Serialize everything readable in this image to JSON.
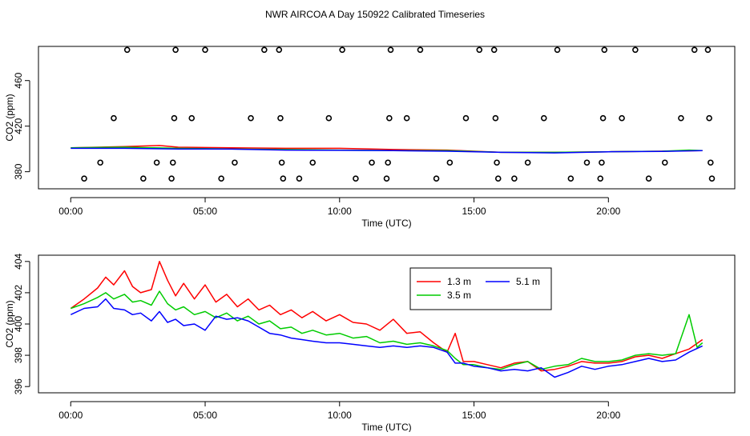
{
  "title": "NWR AIRCOA A  Day 150922  Calibrated Timeseries",
  "chart_data": [
    {
      "type": "scatter",
      "xlabel": "Time (UTC)",
      "ylabel": "CO2 (ppm)",
      "xlim": [
        -1.2,
        24.7
      ],
      "ylim": [
        365,
        490
      ],
      "x_ticks": [
        0,
        5,
        10,
        15,
        20
      ],
      "x_tick_labels": [
        "00:00",
        "05:00",
        "10:00",
        "15:00",
        "20:00"
      ],
      "y_ticks": [
        380,
        420,
        460
      ],
      "y_tick_labels": [
        "380",
        "420",
        "460"
      ],
      "grid": false,
      "legend": "none",
      "marker_points": [
        {
          "x": 0.5,
          "y": 374
        },
        {
          "x": 1.1,
          "y": 388
        },
        {
          "x": 1.6,
          "y": 427
        },
        {
          "x": 2.1,
          "y": 487
        },
        {
          "x": 2.7,
          "y": 374
        },
        {
          "x": 3.2,
          "y": 388
        },
        {
          "x": 3.75,
          "y": 374
        },
        {
          "x": 3.8,
          "y": 388
        },
        {
          "x": 3.85,
          "y": 427
        },
        {
          "x": 3.9,
          "y": 487
        },
        {
          "x": 4.5,
          "y": 427
        },
        {
          "x": 5.0,
          "y": 487
        },
        {
          "x": 5.6,
          "y": 374
        },
        {
          "x": 6.1,
          "y": 388
        },
        {
          "x": 6.7,
          "y": 427
        },
        {
          "x": 7.2,
          "y": 487
        },
        {
          "x": 7.75,
          "y": 487
        },
        {
          "x": 7.8,
          "y": 427
        },
        {
          "x": 7.85,
          "y": 388
        },
        {
          "x": 7.9,
          "y": 374
        },
        {
          "x": 8.5,
          "y": 374
        },
        {
          "x": 9.0,
          "y": 388
        },
        {
          "x": 9.6,
          "y": 427
        },
        {
          "x": 10.1,
          "y": 487
        },
        {
          "x": 10.6,
          "y": 374
        },
        {
          "x": 11.2,
          "y": 388
        },
        {
          "x": 11.75,
          "y": 374
        },
        {
          "x": 11.8,
          "y": 388
        },
        {
          "x": 11.85,
          "y": 427
        },
        {
          "x": 11.9,
          "y": 487
        },
        {
          "x": 12.5,
          "y": 427
        },
        {
          "x": 13.0,
          "y": 487
        },
        {
          "x": 13.6,
          "y": 374
        },
        {
          "x": 14.1,
          "y": 388
        },
        {
          "x": 14.7,
          "y": 427
        },
        {
          "x": 15.2,
          "y": 487
        },
        {
          "x": 15.75,
          "y": 487
        },
        {
          "x": 15.8,
          "y": 427
        },
        {
          "x": 15.85,
          "y": 388
        },
        {
          "x": 15.9,
          "y": 374
        },
        {
          "x": 16.5,
          "y": 374
        },
        {
          "x": 17.0,
          "y": 388
        },
        {
          "x": 17.6,
          "y": 427
        },
        {
          "x": 18.1,
          "y": 487
        },
        {
          "x": 18.6,
          "y": 374
        },
        {
          "x": 19.2,
          "y": 388
        },
        {
          "x": 19.7,
          "y": 374
        },
        {
          "x": 19.75,
          "y": 388
        },
        {
          "x": 19.8,
          "y": 427
        },
        {
          "x": 19.85,
          "y": 487
        },
        {
          "x": 20.5,
          "y": 427
        },
        {
          "x": 21.0,
          "y": 487
        },
        {
          "x": 21.5,
          "y": 374
        },
        {
          "x": 22.1,
          "y": 388
        },
        {
          "x": 22.7,
          "y": 427
        },
        {
          "x": 23.2,
          "y": 487
        },
        {
          "x": 23.7,
          "y": 487
        },
        {
          "x": 23.75,
          "y": 427
        },
        {
          "x": 23.8,
          "y": 388
        },
        {
          "x": 23.85,
          "y": 374
        }
      ],
      "series": [
        {
          "name": "1.3 m",
          "color": "#ff0000",
          "x": [
            0,
            2,
            3.3,
            4,
            6,
            8,
            10,
            12,
            14,
            16,
            18,
            20,
            22,
            23.5
          ],
          "values": [
            401,
            402,
            403,
            401.5,
            401,
            400.5,
            400.5,
            399.5,
            399,
            397,
            397,
            397.5,
            398,
            398.5
          ]
        },
        {
          "name": "3.5 m",
          "color": "#00cc00",
          "x": [
            0,
            2,
            4,
            6,
            8,
            10,
            12,
            14,
            16,
            18,
            20,
            22,
            23,
            23.5
          ],
          "values": [
            401,
            401.5,
            400.5,
            400,
            399.5,
            399,
            398.5,
            398.5,
            397,
            397,
            397.5,
            398,
            399,
            398.5
          ]
        },
        {
          "name": "5.1 m",
          "color": "#0000ff",
          "x": [
            0,
            2,
            4,
            6,
            8,
            10,
            12,
            14,
            16,
            18,
            20,
            22,
            23.5
          ],
          "values": [
            400.5,
            400.5,
            400,
            399.8,
            399,
            398.8,
            398.5,
            398,
            397,
            396.5,
            397.5,
            397.8,
            398.5
          ]
        }
      ]
    },
    {
      "type": "line",
      "xlabel": "Time (UTC)",
      "ylabel": "CO2 (ppm)",
      "xlim": [
        -1.2,
        24.7
      ],
      "ylim": [
        395.6,
        404.4
      ],
      "x_ticks": [
        0,
        5,
        10,
        15,
        20
      ],
      "x_tick_labels": [
        "00:00",
        "05:00",
        "10:00",
        "15:00",
        "20:00"
      ],
      "y_ticks": [
        396,
        398,
        400,
        402,
        404
      ],
      "y_tick_labels": [
        "396",
        "398",
        "400",
        "402",
        "404"
      ],
      "grid": false,
      "legend": "top-right",
      "series": [
        {
          "name": "1.3 m",
          "color": "#ff0000",
          "x": [
            0,
            0.5,
            1.0,
            1.3,
            1.6,
            2.0,
            2.3,
            2.6,
            3.0,
            3.3,
            3.6,
            3.9,
            4.2,
            4.6,
            5.0,
            5.4,
            5.8,
            6.2,
            6.6,
            7.0,
            7.4,
            7.8,
            8.2,
            8.6,
            9.0,
            9.5,
            10.0,
            10.5,
            11.0,
            11.5,
            12.0,
            12.5,
            13.0,
            13.5,
            14.0,
            14.3,
            14.6,
            15.0,
            15.5,
            16.0,
            16.5,
            17.0,
            17.5,
            18.0,
            18.5,
            19.0,
            19.5,
            20.0,
            20.5,
            21.0,
            21.5,
            22.0,
            22.5,
            23.0,
            23.5
          ],
          "values": [
            401.0,
            401.6,
            402.3,
            403.0,
            402.5,
            403.4,
            402.4,
            402.0,
            402.2,
            404.0,
            402.8,
            401.8,
            402.6,
            401.6,
            402.5,
            401.4,
            401.9,
            401.1,
            401.6,
            400.9,
            401.2,
            400.6,
            400.9,
            400.4,
            400.8,
            400.2,
            400.6,
            400.1,
            400.0,
            399.6,
            400.3,
            399.4,
            399.5,
            398.8,
            398.2,
            399.4,
            397.6,
            397.6,
            397.4,
            397.2,
            397.5,
            397.6,
            397.0,
            397.1,
            397.3,
            397.6,
            397.5,
            397.5,
            397.6,
            397.9,
            398.0,
            397.8,
            398.1,
            398.4,
            399.0
          ]
        },
        {
          "name": "3.5 m",
          "color": "#00cc00",
          "x": [
            0,
            0.5,
            1.0,
            1.3,
            1.6,
            2.0,
            2.3,
            2.6,
            3.0,
            3.3,
            3.6,
            3.9,
            4.2,
            4.6,
            5.0,
            5.4,
            5.8,
            6.2,
            6.6,
            7.0,
            7.4,
            7.8,
            8.2,
            8.6,
            9.0,
            9.5,
            10.0,
            10.5,
            11.0,
            11.5,
            12.0,
            12.5,
            13.0,
            13.5,
            14.0,
            14.3,
            14.6,
            15.0,
            15.5,
            16.0,
            16.5,
            17.0,
            17.5,
            18.0,
            18.5,
            19.0,
            19.5,
            20.0,
            20.5,
            21.0,
            21.5,
            22.0,
            22.5,
            23.0,
            23.3,
            23.5
          ],
          "values": [
            401.0,
            401.3,
            401.7,
            402.0,
            401.6,
            401.9,
            401.4,
            401.5,
            401.2,
            402.1,
            401.3,
            400.9,
            401.1,
            400.6,
            400.8,
            400.4,
            400.7,
            400.2,
            400.5,
            400.0,
            400.2,
            399.7,
            399.8,
            399.4,
            399.6,
            399.3,
            399.4,
            399.1,
            399.2,
            398.8,
            398.9,
            398.7,
            398.8,
            398.6,
            398.3,
            397.8,
            397.4,
            397.4,
            397.2,
            397.1,
            397.4,
            397.6,
            397.1,
            397.3,
            397.4,
            397.8,
            397.6,
            397.6,
            397.7,
            398.0,
            398.1,
            398.0,
            398.1,
            400.6,
            398.5,
            398.8
          ]
        },
        {
          "name": "5.1 m",
          "color": "#0000ff",
          "x": [
            0,
            0.5,
            1.0,
            1.3,
            1.6,
            2.0,
            2.3,
            2.6,
            3.0,
            3.3,
            3.6,
            3.9,
            4.2,
            4.6,
            5.0,
            5.4,
            5.8,
            6.2,
            6.6,
            7.0,
            7.4,
            7.8,
            8.2,
            8.6,
            9.0,
            9.5,
            10.0,
            10.5,
            11.0,
            11.5,
            12.0,
            12.5,
            13.0,
            13.5,
            14.0,
            14.3,
            14.6,
            15.0,
            15.5,
            16.0,
            16.5,
            17.0,
            17.5,
            18.0,
            18.5,
            19.0,
            19.5,
            20.0,
            20.5,
            21.0,
            21.5,
            22.0,
            22.5,
            23.0,
            23.5
          ],
          "values": [
            400.6,
            401.0,
            401.1,
            401.6,
            401.0,
            400.9,
            400.6,
            400.7,
            400.2,
            400.8,
            400.1,
            400.3,
            399.9,
            400.0,
            399.6,
            400.5,
            400.3,
            400.4,
            400.2,
            399.8,
            399.4,
            399.3,
            399.1,
            399.0,
            398.9,
            398.8,
            398.8,
            398.7,
            398.6,
            398.5,
            398.6,
            398.5,
            398.6,
            398.5,
            398.2,
            397.5,
            397.5,
            397.3,
            397.2,
            397.0,
            397.1,
            397.0,
            397.2,
            396.6,
            396.9,
            397.3,
            397.1,
            397.3,
            397.4,
            397.6,
            397.8,
            397.6,
            397.7,
            398.2,
            398.6
          ]
        }
      ]
    }
  ]
}
